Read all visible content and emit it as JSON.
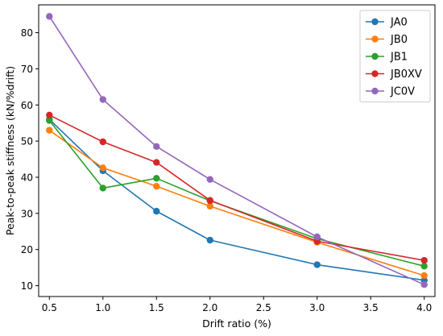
{
  "chart_data": {
    "type": "line",
    "title": "",
    "xlabel": "Drift ratio (%)",
    "ylabel": "Peak-to-peak stiffness (kN/%drift)",
    "xlim": [
      0.4,
      4.1
    ],
    "ylim": [
      7.0,
      87.7
    ],
    "xticks": [
      0.5,
      1.0,
      1.5,
      2.0,
      2.5,
      3.0,
      3.5,
      4.0
    ],
    "xtick_labels": [
      "0.5",
      "1.0",
      "1.5",
      "2.0",
      "2.5",
      "3.0",
      "3.5",
      "4.0"
    ],
    "yticks": [
      10,
      20,
      30,
      40,
      50,
      60,
      70,
      80
    ],
    "ytick_labels": [
      "10",
      "20",
      "30",
      "40",
      "50",
      "60",
      "70",
      "80"
    ],
    "x": [
      0.5,
      1.0,
      1.5,
      2.0,
      3.0,
      4.0
    ],
    "grid": false,
    "legend_position": "top-right",
    "series": [
      {
        "name": "JA0",
        "color": "#1f77b4",
        "values": [
          56.0,
          41.8,
          30.6,
          22.6,
          15.8,
          11.5
        ]
      },
      {
        "name": "JB0",
        "color": "#ff7f0e",
        "values": [
          53.0,
          42.6,
          37.5,
          32.0,
          22.0,
          12.8
        ]
      },
      {
        "name": "JB1",
        "color": "#2ca02c",
        "values": [
          55.7,
          37.0,
          39.7,
          33.5,
          23.0,
          15.4
        ]
      },
      {
        "name": "JB0XV",
        "color": "#d62728",
        "values": [
          57.2,
          49.8,
          44.1,
          33.6,
          22.3,
          17.0
        ]
      },
      {
        "name": "JC0V",
        "color": "#9467bd",
        "values": [
          84.5,
          61.5,
          48.5,
          39.4,
          23.5,
          10.3
        ]
      }
    ]
  }
}
